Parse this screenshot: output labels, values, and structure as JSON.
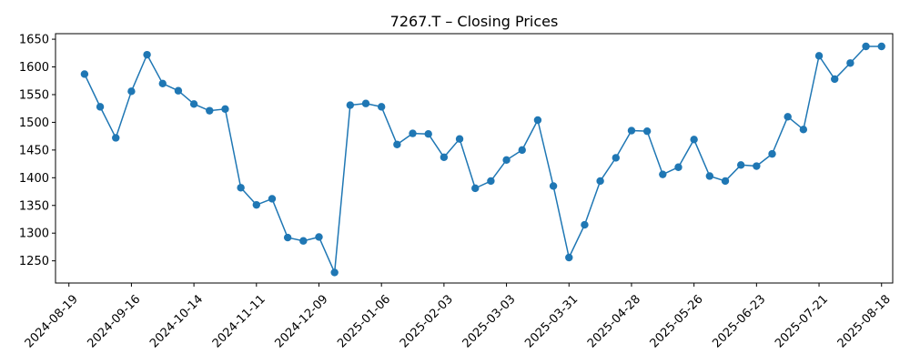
{
  "chart_data": {
    "type": "line",
    "title": "7267.T – Closing Prices",
    "xlabel": "",
    "ylabel": "",
    "x_ticks": [
      "2024-08-19",
      "2024-09-16",
      "2024-10-14",
      "2024-11-11",
      "2024-12-09",
      "2025-01-06",
      "2025-02-03",
      "2025-03-03",
      "2025-03-31",
      "2025-04-28",
      "2025-05-26",
      "2025-06-23",
      "2025-07-21",
      "2025-08-18"
    ],
    "y_ticks": [
      1250,
      1300,
      1350,
      1400,
      1450,
      1500,
      1550,
      1600,
      1650
    ],
    "xlim": [
      "2024-08-13",
      "2025-08-23"
    ],
    "ylim": [
      1210,
      1660
    ],
    "grid": false,
    "legend": "none",
    "marker": "circle",
    "colors": {
      "series": "#1f77b4",
      "axes": "#000000",
      "background": "#ffffff"
    },
    "series": [
      {
        "x": [
          "2024-08-26",
          "2024-09-02",
          "2024-09-09",
          "2024-09-16",
          "2024-09-23",
          "2024-09-30",
          "2024-10-07",
          "2024-10-14",
          "2024-10-21",
          "2024-10-28",
          "2024-11-04",
          "2024-11-11",
          "2024-11-18",
          "2024-11-25",
          "2024-12-02",
          "2024-12-09",
          "2024-12-16",
          "2024-12-23",
          "2024-12-30",
          "2025-01-06",
          "2025-01-13",
          "2025-01-20",
          "2025-01-27",
          "2025-02-03",
          "2025-02-10",
          "2025-02-17",
          "2025-02-24",
          "2025-03-03",
          "2025-03-10",
          "2025-03-17",
          "2025-03-24",
          "2025-03-31",
          "2025-04-07",
          "2025-04-14",
          "2025-04-21",
          "2025-04-28",
          "2025-05-05",
          "2025-05-12",
          "2025-05-19",
          "2025-05-26",
          "2025-06-02",
          "2025-06-09",
          "2025-06-16",
          "2025-06-23",
          "2025-06-30",
          "2025-07-07",
          "2025-07-14",
          "2025-07-21",
          "2025-07-28",
          "2025-08-04",
          "2025-08-11",
          "2025-08-18"
        ],
        "values": [
          1587,
          1528,
          1472,
          1556,
          1622,
          1570,
          1557,
          1533,
          1521,
          1524,
          1382,
          1351,
          1362,
          1292,
          1286,
          1293,
          1229,
          1531,
          1534,
          1528,
          1460,
          1480,
          1479,
          1437,
          1470,
          1381,
          1394,
          1432,
          1450,
          1504,
          1385,
          1256,
          1315,
          1394,
          1436,
          1485,
          1484,
          1406,
          1419,
          1469,
          1403,
          1394,
          1423,
          1421,
          1443,
          1510,
          1487,
          1620,
          1578,
          1607,
          1637,
          1637
        ]
      }
    ]
  }
}
